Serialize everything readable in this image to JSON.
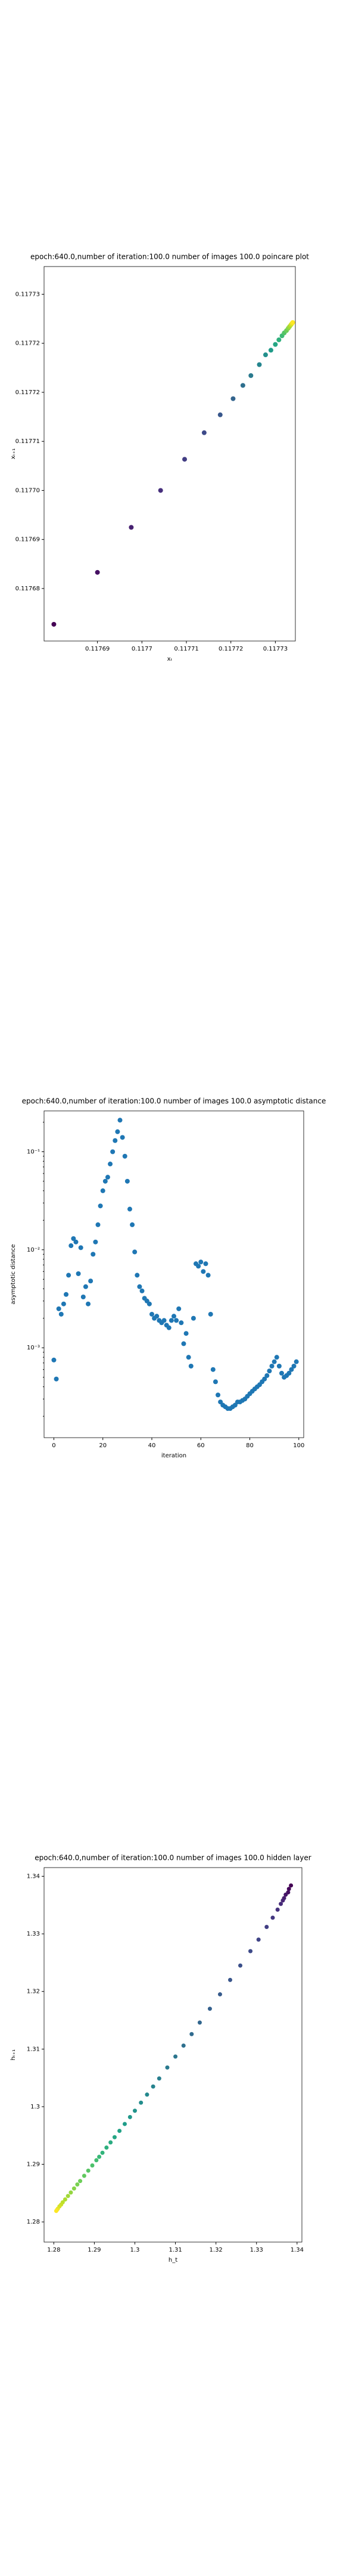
{
  "chart_data": [
    {
      "type": "scatter",
      "title": "epoch:640.0,number of iteration:100.0 number of images 100.0 poincare plot",
      "x_label": "xₜ",
      "y_label": "xₜ₊₁",
      "colormap": "viridis",
      "x": [
        0.1176802,
        0.11769,
        0.1176976,
        0.1177042,
        0.1177096,
        0.117714,
        0.1177176,
        0.1177205,
        0.1177227,
        0.1177245,
        0.1177264,
        0.1177278,
        0.117729,
        0.11773,
        0.1177308,
        0.1177315,
        0.117732,
        0.1177325,
        0.1177329,
        0.1177332,
        0.1177335,
        0.1177337,
        0.1177339
      ],
      "y": [
        0.1176748,
        0.1176838,
        0.1176916,
        0.117698,
        0.1177034,
        0.117708,
        0.1177111,
        0.1177139,
        0.1177162,
        0.1177179,
        0.1177198,
        0.1177215,
        0.1177223,
        0.1177233,
        0.1177241,
        0.1177248,
        0.1177253,
        0.1177257,
        0.1177261,
        0.1177264,
        0.1177267,
        0.1177269,
        0.1177271
      ],
      "xlim": [
        0.117678,
        0.1177345
      ],
      "ylim": [
        0.1176719,
        0.1177368
      ],
      "xticks": [
        0.11769,
        0.1177,
        0.11771,
        0.11772,
        0.11773
      ],
      "yticks": [
        {
          "value": 0.117681,
          "label": "0.11768"
        },
        {
          "value": 0.1176895,
          "label": "0.11769"
        },
        {
          "value": 0.117698,
          "label": "0.11770"
        },
        {
          "value": 0.1177065,
          "label": "0.11771"
        },
        {
          "value": 0.117715,
          "label": "0.11772"
        },
        {
          "value": 0.1177235,
          "label": "0.11772"
        },
        {
          "value": 0.117732,
          "label": "0.11773"
        }
      ]
    },
    {
      "type": "scatter",
      "title": "epoch:640.0,number of iteration:100.0  number of images 100.0 asymptotic distance",
      "x_label": "iteration",
      "y_label": "asymptotic distance",
      "color": "#1f77b4",
      "log_y": true,
      "x": [
        0,
        1,
        2,
        3,
        4,
        5,
        6,
        7,
        8,
        9,
        10,
        11,
        12,
        13,
        14,
        15,
        16,
        17,
        18,
        19,
        20,
        21,
        22,
        23,
        24,
        25,
        26,
        27,
        28,
        29,
        30,
        31,
        32,
        33,
        34,
        35,
        36,
        37,
        38,
        39,
        40,
        41,
        42,
        43,
        44,
        45,
        46,
        47,
        48,
        49,
        50,
        51,
        52,
        53,
        54,
        55,
        56,
        57,
        58,
        59,
        60,
        61,
        62,
        63,
        64,
        65,
        66,
        67,
        68,
        69,
        70,
        71,
        72,
        73,
        74,
        75,
        76,
        77,
        78,
        79,
        80,
        81,
        82,
        83,
        84,
        85,
        86,
        87,
        88,
        89,
        90,
        91,
        92,
        93,
        94,
        95,
        96,
        97,
        98,
        99
      ],
      "y": [
        0.00075,
        0.00048,
        0.0025,
        0.0022,
        0.0028,
        0.0035,
        0.0055,
        0.011,
        0.013,
        0.012,
        0.0057,
        0.0105,
        0.0033,
        0.0042,
        0.0028,
        0.0048,
        0.009,
        0.012,
        0.018,
        0.028,
        0.04,
        0.05,
        0.055,
        0.075,
        0.1,
        0.13,
        0.16,
        0.21,
        0.14,
        0.09,
        0.05,
        0.026,
        0.018,
        0.0095,
        0.0055,
        0.0042,
        0.0038,
        0.0032,
        0.003,
        0.0028,
        0.0022,
        0.002,
        0.0021,
        0.0019,
        0.0018,
        0.0019,
        0.0017,
        0.0016,
        0.0019,
        0.0021,
        0.0019,
        0.0025,
        0.0018,
        0.0011,
        0.0014,
        0.0008,
        0.00065,
        0.002,
        0.0072,
        0.0068,
        0.0075,
        0.006,
        0.0072,
        0.0055,
        0.0022,
        0.0006,
        0.00045,
        0.00033,
        0.00028,
        0.00026,
        0.00025,
        0.00024,
        0.00024,
        0.00025,
        0.00026,
        0.00028,
        0.00028,
        0.00029,
        0.0003,
        0.00032,
        0.00034,
        0.00036,
        0.00038,
        0.0004,
        0.00042,
        0.00045,
        0.00048,
        0.00052,
        0.00058,
        0.00065,
        0.00072,
        0.0008,
        0.00065,
        0.00055,
        0.0005,
        0.00052,
        0.00055,
        0.0006,
        0.00065,
        0.00072
      ],
      "xlim": [
        -4,
        102
      ],
      "ylim": [
        0.000121,
        0.261
      ],
      "xticks": [
        0,
        20,
        40,
        60,
        80,
        100
      ],
      "yticks": [
        {
          "value": 0.001,
          "label": "10⁻³"
        },
        {
          "value": 0.01,
          "label": "10⁻²"
        },
        {
          "value": 0.1,
          "label": "10⁻¹"
        }
      ]
    },
    {
      "type": "scatter",
      "title": "epoch:640.0,number of iteration:100.0  number of images 100.0 hidden layer",
      "x_label": "h_t",
      "y_label": "hₜ₊₁",
      "colormap": "viridis",
      "x": [
        1.3385,
        1.338,
        1.3378,
        1.3372,
        1.3368,
        1.3365,
        1.336,
        1.3352,
        1.334,
        1.3325,
        1.3305,
        1.3285,
        1.326,
        1.3235,
        1.321,
        1.3185,
        1.316,
        1.314,
        1.312,
        1.31,
        1.308,
        1.306,
        1.3045,
        1.303,
        1.3015,
        1.3,
        1.2988,
        1.2975,
        1.2962,
        1.295,
        1.294,
        1.293,
        1.292,
        1.2912,
        1.2905,
        1.2895,
        1.2885,
        1.2875,
        1.2865,
        1.2858,
        1.285,
        1.2842,
        1.2835,
        1.2828,
        1.2822,
        1.2818,
        1.2814,
        1.281,
        1.2808,
        1.2806
      ],
      "y": [
        1.3384,
        1.3378,
        1.3372,
        1.3368,
        1.3362,
        1.3358,
        1.3352,
        1.3342,
        1.3328,
        1.3312,
        1.329,
        1.327,
        1.3245,
        1.322,
        1.3195,
        1.317,
        1.3146,
        1.3126,
        1.3106,
        1.3087,
        1.3068,
        1.3049,
        1.3035,
        1.3021,
        1.3007,
        1.2993,
        1.2982,
        1.297,
        1.2958,
        1.2947,
        1.2938,
        1.2929,
        1.292,
        1.2913,
        1.2907,
        1.2898,
        1.2889,
        1.288,
        1.2871,
        1.2865,
        1.2858,
        1.2851,
        1.2845,
        1.2839,
        1.2834,
        1.283,
        1.2827,
        1.2823,
        1.2821,
        1.2819
      ],
      "xlim": [
        1.2776,
        1.3412
      ],
      "ylim": [
        1.2765,
        1.3415
      ],
      "xticks": [
        1.28,
        1.29,
        1.3,
        1.31,
        1.32,
        1.33,
        1.34
      ],
      "yticks": [
        1.28,
        1.29,
        1.3,
        1.31,
        1.32,
        1.33,
        1.34
      ]
    }
  ]
}
